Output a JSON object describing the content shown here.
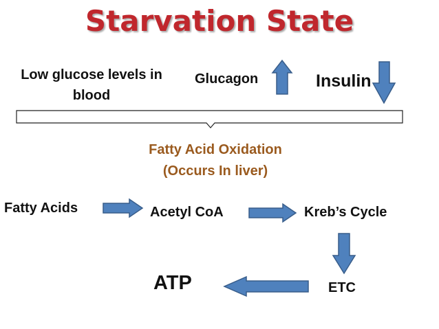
{
  "title": "Starvation State",
  "trigger": {
    "low_glucose": "Low glucose levels in blood",
    "glucagon": "Glucagon",
    "insulin": "Insulin"
  },
  "process": {
    "line1": "Fatty Acid Oxidation",
    "line2": "(Occurs In liver)"
  },
  "pathway": {
    "fatty_acids": "Fatty Acids",
    "acetyl_coa": "Acetyl CoA",
    "krebs_cycle": "Kreb’s Cycle",
    "etc": "ETC",
    "atp": "ATP"
  },
  "colors": {
    "title": "#c0272d",
    "process": "#9a5a1e",
    "arrow_fill": "#4f81bd",
    "arrow_stroke": "#385d8a"
  }
}
